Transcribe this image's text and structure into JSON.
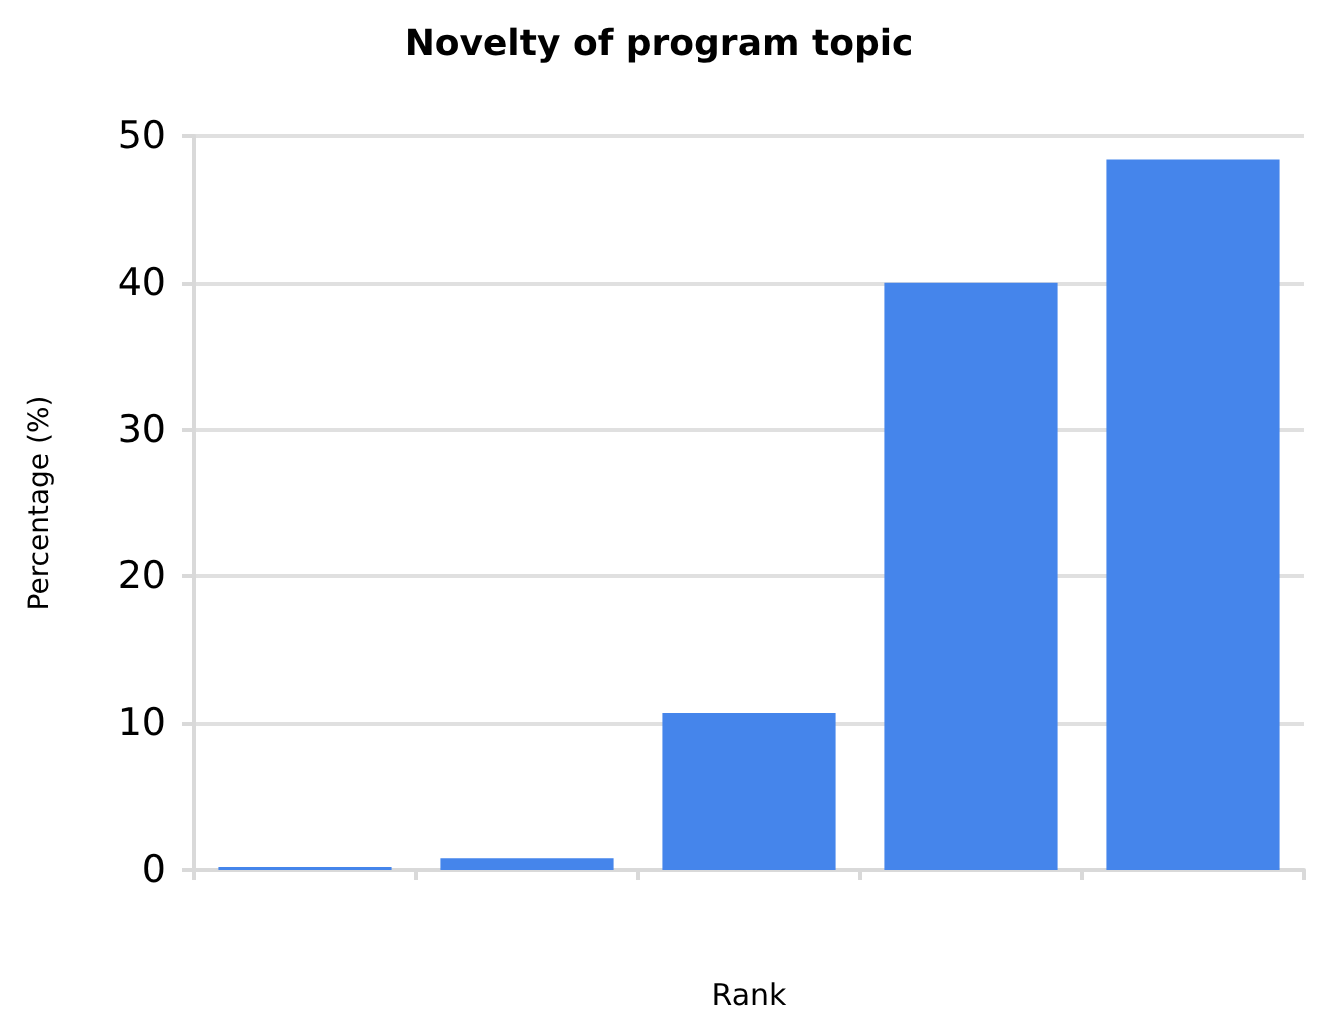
{
  "chart_data": {
    "type": "bar",
    "title": "Novelty of program topic",
    "xlabel": "Rank",
    "ylabel": "Percentage (%)",
    "categories": [
      null,
      null,
      null,
      null,
      null
    ],
    "values": [
      0.2,
      0.8,
      10.7,
      40,
      48.4
    ],
    "color": "#4585eb",
    "ylim": [
      0,
      50
    ],
    "yticks": [
      0,
      10,
      20,
      30,
      40,
      50
    ],
    "grid": "y"
  }
}
